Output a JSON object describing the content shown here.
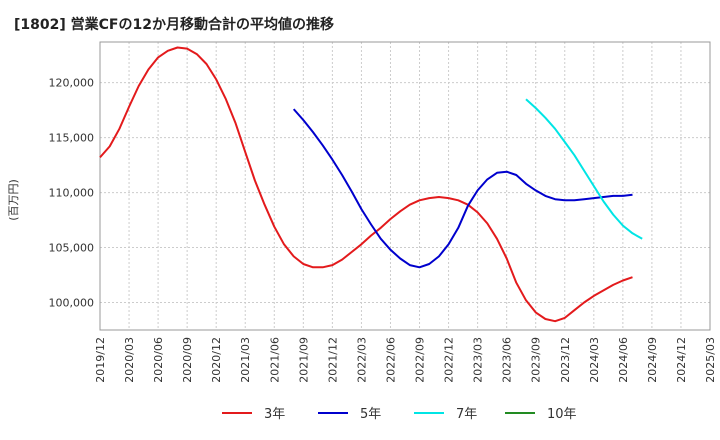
{
  "chart_data": {
    "type": "line",
    "title": "[1802]  営業CFの12か月移動合計の平均値の推移",
    "ylabel": "(百万円)",
    "xlabel": "",
    "ylim": [
      97500,
      123700
    ],
    "y_ticks": [
      100000,
      105000,
      110000,
      115000,
      120000
    ],
    "y_tick_labels": [
      "100,000",
      "105,000",
      "110,000",
      "115,000",
      "120,000"
    ],
    "x_tick_labels": [
      "2019/12",
      "2020/03",
      "2020/06",
      "2020/09",
      "2020/12",
      "2021/03",
      "2021/06",
      "2021/09",
      "2021/12",
      "2022/03",
      "2022/06",
      "2022/09",
      "2022/12",
      "2023/03",
      "2023/06",
      "2023/09",
      "2023/12",
      "2024/03",
      "2024/06",
      "2024/09",
      "2024/12",
      "2025/03"
    ],
    "x_range": [
      "2019/12",
      "2025/03"
    ],
    "grid": true,
    "legend_position": "bottom",
    "series": [
      {
        "name": "3年",
        "color": "#e31a1c",
        "start": "2019/12",
        "values": [
          113200,
          114200,
          115800,
          117800,
          119700,
          121200,
          122300,
          122900,
          123200,
          123100,
          122600,
          121700,
          120300,
          118500,
          116300,
          113700,
          111100,
          108900,
          106900,
          105300,
          104200,
          103500,
          103200,
          103200,
          103400,
          103900,
          104600,
          105300,
          106100,
          106800,
          107600,
          108300,
          108900,
          109300,
          109500,
          109600,
          109500,
          109300,
          108900,
          108200,
          107200,
          105800,
          104000,
          101800,
          100200,
          99100,
          98500,
          98300,
          98600,
          99300,
          100000,
          100600,
          101100,
          101600,
          102000,
          102300
        ]
      },
      {
        "name": "5年",
        "color": "#0000cd",
        "start": "2021/08",
        "values": [
          117600,
          116600,
          115500,
          114300,
          113000,
          111600,
          110100,
          108500,
          107100,
          105800,
          104800,
          104000,
          103400,
          103200,
          103500,
          104200,
          105300,
          106800,
          108800,
          110200,
          111200,
          111800,
          111900,
          111600,
          110800,
          110200,
          109700,
          109400,
          109300,
          109300,
          109400,
          109500,
          109600,
          109700,
          109700,
          109800
        ]
      },
      {
        "name": "7年",
        "color": "#00e5e5",
        "start": "2023/08",
        "values": [
          118500,
          117700,
          116800,
          115800,
          114600,
          113400,
          112000,
          110600,
          109200,
          108000,
          107000,
          106300,
          105800
        ]
      },
      {
        "name": "10年",
        "color": "#228b22",
        "start": "2024/09",
        "values": []
      }
    ]
  }
}
